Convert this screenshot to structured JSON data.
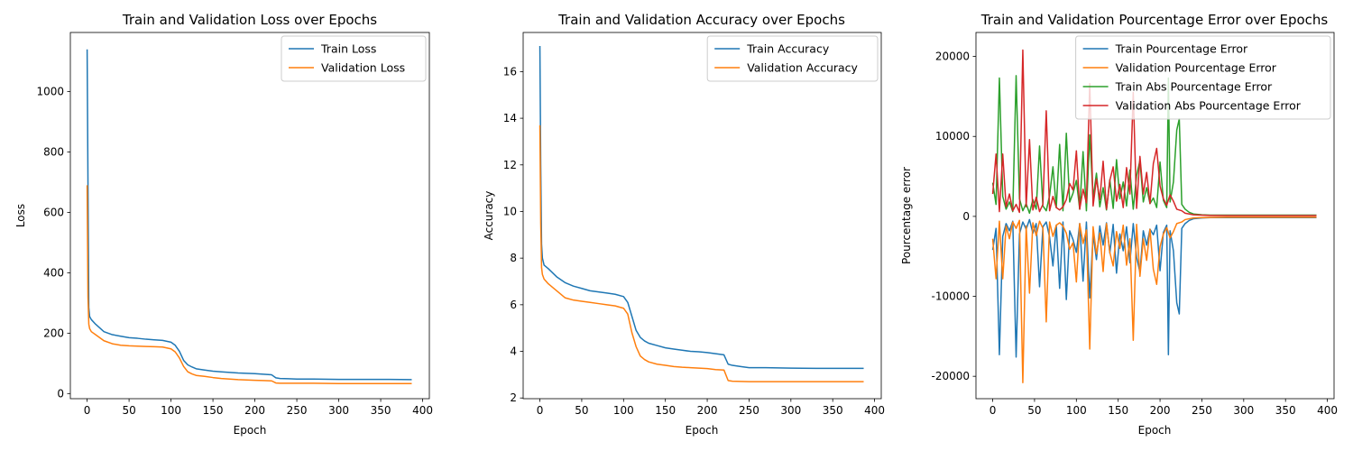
{
  "figure": {
    "background": "#ffffff"
  },
  "chart_data": [
    {
      "type": "line",
      "title": "Train and Validation Loss over Epochs",
      "xlabel": "Epoch",
      "ylabel": "Loss",
      "xlim": [
        -20,
        408
      ],
      "ylim": [
        -17,
        1196
      ],
      "xticks": [
        0,
        50,
        100,
        150,
        200,
        250,
        300,
        350,
        400
      ],
      "yticks": [
        0,
        200,
        400,
        600,
        800,
        1000
      ],
      "legend": "top-right",
      "grid": false,
      "series": [
        {
          "name": "Train Loss",
          "color": "#1f77b4",
          "x": [
            0,
            1,
            2,
            3,
            5,
            10,
            20,
            30,
            40,
            50,
            60,
            70,
            80,
            90,
            100,
            105,
            110,
            115,
            120,
            125,
            130,
            140,
            150,
            160,
            170,
            180,
            190,
            200,
            210,
            220,
            225,
            230,
            240,
            250,
            270,
            300,
            330,
            360,
            387
          ],
          "y": [
            1140,
            700,
            285,
            255,
            245,
            230,
            205,
            195,
            190,
            185,
            183,
            180,
            178,
            176,
            170,
            160,
            140,
            110,
            95,
            88,
            82,
            78,
            74,
            72,
            70,
            68,
            67,
            66,
            64,
            62,
            52,
            50,
            49,
            48,
            48,
            47,
            47,
            47,
            46
          ]
        },
        {
          "name": "Validation Loss",
          "color": "#ff7f0e",
          "x": [
            0,
            1,
            2,
            3,
            5,
            10,
            20,
            30,
            40,
            50,
            60,
            70,
            80,
            90,
            100,
            105,
            110,
            115,
            120,
            125,
            130,
            140,
            150,
            160,
            170,
            180,
            190,
            200,
            210,
            220,
            225,
            230,
            240,
            250,
            270,
            300,
            330,
            360,
            387
          ],
          "y": [
            690,
            320,
            230,
            215,
            205,
            195,
            175,
            165,
            160,
            158,
            157,
            156,
            155,
            154,
            148,
            138,
            118,
            90,
            72,
            65,
            60,
            57,
            53,
            50,
            48,
            46,
            45,
            44,
            43,
            42,
            35,
            34,
            34,
            34,
            34,
            33,
            33,
            33,
            33
          ]
        }
      ]
    },
    {
      "type": "line",
      "title": "Train and Validation Accuracy over Epochs",
      "xlabel": "Epoch",
      "ylabel": "Accuracy",
      "xlim": [
        -20,
        408
      ],
      "ylim": [
        1.97,
        17.68
      ],
      "xticks": [
        0,
        50,
        100,
        150,
        200,
        250,
        300,
        350,
        400
      ],
      "yticks": [
        2,
        4,
        6,
        8,
        10,
        12,
        14,
        16
      ],
      "legend": "top-right",
      "grid": false,
      "series": [
        {
          "name": "Train Accuracy",
          "color": "#1f77b4",
          "x": [
            0,
            1,
            2,
            3,
            5,
            10,
            20,
            30,
            40,
            50,
            60,
            70,
            80,
            90,
            100,
            105,
            110,
            115,
            120,
            125,
            130,
            140,
            150,
            160,
            170,
            180,
            190,
            200,
            210,
            220,
            225,
            230,
            240,
            250,
            270,
            300,
            330,
            360,
            387
          ],
          "y": [
            17.1,
            12.0,
            8.6,
            8.0,
            7.7,
            7.55,
            7.2,
            6.95,
            6.8,
            6.7,
            6.6,
            6.55,
            6.5,
            6.45,
            6.35,
            6.1,
            5.5,
            4.9,
            4.6,
            4.45,
            4.35,
            4.25,
            4.15,
            4.1,
            4.05,
            4.0,
            3.98,
            3.95,
            3.9,
            3.85,
            3.45,
            3.4,
            3.35,
            3.3,
            3.3,
            3.28,
            3.27,
            3.27,
            3.27
          ]
        },
        {
          "name": "Validation Accuracy",
          "color": "#ff7f0e",
          "x": [
            0,
            1,
            2,
            3,
            5,
            10,
            20,
            30,
            40,
            50,
            60,
            70,
            80,
            90,
            100,
            105,
            110,
            115,
            120,
            125,
            130,
            140,
            150,
            160,
            170,
            180,
            190,
            200,
            210,
            220,
            225,
            230,
            240,
            250,
            270,
            300,
            330,
            360,
            387
          ],
          "y": [
            13.7,
            9.5,
            7.6,
            7.3,
            7.1,
            6.9,
            6.6,
            6.3,
            6.2,
            6.15,
            6.1,
            6.05,
            6.0,
            5.95,
            5.85,
            5.6,
            4.8,
            4.2,
            3.8,
            3.65,
            3.55,
            3.45,
            3.4,
            3.35,
            3.32,
            3.3,
            3.28,
            3.26,
            3.22,
            3.2,
            2.75,
            2.72,
            2.71,
            2.7,
            2.7,
            2.7,
            2.7,
            2.7,
            2.7
          ]
        }
      ]
    },
    {
      "type": "line",
      "title": "Train and Validation Pourcentage Error over Epochs",
      "xlabel": "Epoch",
      "ylabel": "Pourcentage error",
      "xlim": [
        -20,
        408
      ],
      "ylim": [
        -22800,
        23000
      ],
      "xticks": [
        0,
        50,
        100,
        150,
        200,
        250,
        300,
        350,
        400
      ],
      "yticks": [
        -20000,
        -10000,
        0,
        10000,
        20000
      ],
      "legend": "top-right",
      "grid": false,
      "series": [
        {
          "name": "Train Pourcentage Error",
          "color": "#1f77b4",
          "x": [
            0,
            4,
            8,
            12,
            16,
            20,
            24,
            28,
            32,
            36,
            40,
            44,
            48,
            52,
            56,
            60,
            64,
            68,
            72,
            76,
            80,
            84,
            88,
            92,
            96,
            100,
            104,
            108,
            112,
            116,
            120,
            124,
            128,
            132,
            136,
            140,
            144,
            148,
            152,
            156,
            160,
            164,
            168,
            172,
            176,
            180,
            184,
            188,
            192,
            196,
            200,
            204,
            208,
            210,
            212,
            216,
            220,
            223,
            226,
            230,
            235,
            240,
            250,
            260,
            280,
            300,
            320,
            340,
            360,
            387
          ],
          "y": [
            -4200,
            -1500,
            -17300,
            -2500,
            -900,
            -1800,
            -600,
            -17600,
            -2200,
            -700,
            -1600,
            -400,
            -2100,
            -900,
            -8800,
            -1300,
            -700,
            -2600,
            -6200,
            -1100,
            -9000,
            -700,
            -10400,
            -1800,
            -2900,
            -4500,
            -900,
            -8100,
            -700,
            -10200,
            -2300,
            -5400,
            -1200,
            -3600,
            -800,
            -4600,
            -1000,
            -7100,
            -2200,
            -4300,
            -1300,
            -5800,
            -900,
            -5100,
            -7000,
            -1800,
            -3600,
            -1600,
            -2300,
            -1100,
            -6800,
            -2000,
            -1100,
            -17300,
            -1800,
            -4300,
            -10800,
            -12200,
            -1500,
            -900,
            -500,
            -300,
            -200,
            -150,
            -150,
            -150,
            -150,
            -150,
            -150,
            -150
          ]
        },
        {
          "name": "Validation Pourcentage Error",
          "color": "#ff7f0e",
          "x": [
            0,
            4,
            8,
            12,
            16,
            20,
            24,
            28,
            32,
            36,
            40,
            44,
            48,
            52,
            56,
            60,
            64,
            68,
            72,
            76,
            80,
            84,
            88,
            92,
            96,
            100,
            104,
            108,
            112,
            116,
            120,
            124,
            128,
            132,
            136,
            140,
            144,
            148,
            152,
            156,
            160,
            164,
            168,
            172,
            176,
            180,
            184,
            188,
            192,
            196,
            200,
            204,
            208,
            212,
            216,
            220,
            226,
            230,
            240,
            250,
            260,
            280,
            300,
            320,
            340,
            360,
            387
          ],
          "y": [
            -2800,
            -7800,
            -600,
            -7800,
            -1200,
            -2800,
            -700,
            -1500,
            -500,
            -20800,
            -1200,
            -9600,
            -800,
            -2400,
            -600,
            -1500,
            -13200,
            -700,
            -2500,
            -1100,
            -800,
            -1200,
            -2100,
            -4100,
            -3300,
            -8200,
            -900,
            -3400,
            -1700,
            -16600,
            -1300,
            -4700,
            -2100,
            -6900,
            -900,
            -4500,
            -6200,
            -1900,
            -4000,
            -1100,
            -6100,
            -2800,
            -15500,
            -1000,
            -7500,
            -2800,
            -5500,
            -1600,
            -6600,
            -8500,
            -3800,
            -2200,
            -1400,
            -2700,
            -1900,
            -900,
            -700,
            -400,
            -200,
            -150,
            -120,
            -100,
            -100,
            -100,
            -100,
            -100,
            -100
          ]
        },
        {
          "name": "Train Abs Pourcentage Error",
          "color": "#2ca02c",
          "x": [
            0,
            4,
            8,
            12,
            16,
            20,
            24,
            28,
            32,
            36,
            40,
            44,
            48,
            52,
            56,
            60,
            64,
            68,
            72,
            76,
            80,
            84,
            88,
            92,
            96,
            100,
            104,
            108,
            112,
            116,
            120,
            124,
            128,
            132,
            136,
            140,
            144,
            148,
            152,
            156,
            160,
            164,
            168,
            172,
            176,
            180,
            184,
            188,
            192,
            196,
            200,
            204,
            208,
            210,
            212,
            216,
            220,
            223,
            226,
            230,
            235,
            240,
            250,
            260,
            280,
            300,
            320,
            340,
            360,
            387
          ],
          "y": [
            4200,
            1500,
            17300,
            2500,
            900,
            1800,
            600,
            17600,
            2200,
            700,
            1600,
            400,
            2100,
            900,
            8800,
            1300,
            700,
            2600,
            6200,
            1100,
            9000,
            700,
            10400,
            1800,
            2900,
            4500,
            900,
            8100,
            700,
            10200,
            2300,
            5400,
            1200,
            3600,
            800,
            4600,
            1000,
            7100,
            2200,
            4300,
            1300,
            5800,
            900,
            5100,
            7000,
            1800,
            3600,
            1600,
            2300,
            1100,
            6800,
            2000,
            1100,
            17300,
            1800,
            4300,
            10800,
            12200,
            1500,
            900,
            500,
            300,
            200,
            150,
            150,
            150,
            150,
            150,
            150,
            150
          ]
        },
        {
          "name": "Validation Abs Pourcentage Error",
          "color": "#d62728",
          "x": [
            0,
            4,
            8,
            12,
            16,
            20,
            24,
            28,
            32,
            36,
            40,
            44,
            48,
            52,
            56,
            60,
            64,
            68,
            72,
            76,
            80,
            84,
            88,
            92,
            96,
            100,
            104,
            108,
            112,
            116,
            120,
            124,
            128,
            132,
            136,
            140,
            144,
            148,
            152,
            156,
            160,
            164,
            168,
            172,
            176,
            180,
            184,
            188,
            192,
            196,
            200,
            204,
            208,
            212,
            216,
            220,
            226,
            230,
            240,
            250,
            260,
            280,
            300,
            320,
            340,
            360,
            387
          ],
          "y": [
            2800,
            7800,
            600,
            7800,
            1200,
            2800,
            700,
            1500,
            500,
            20800,
            1200,
            9600,
            800,
            2400,
            600,
            1500,
            13200,
            700,
            2500,
            1100,
            800,
            1200,
            2100,
            4100,
            3300,
            8200,
            900,
            3400,
            1700,
            16600,
            1300,
            4700,
            2100,
            6900,
            900,
            4500,
            6200,
            1900,
            4000,
            1100,
            6100,
            2800,
            15500,
            1000,
            7500,
            2800,
            5500,
            1600,
            6600,
            8500,
            3800,
            2200,
            1400,
            2700,
            1900,
            900,
            700,
            400,
            200,
            150,
            120,
            100,
            100,
            100,
            100,
            100,
            100
          ]
        }
      ]
    }
  ]
}
